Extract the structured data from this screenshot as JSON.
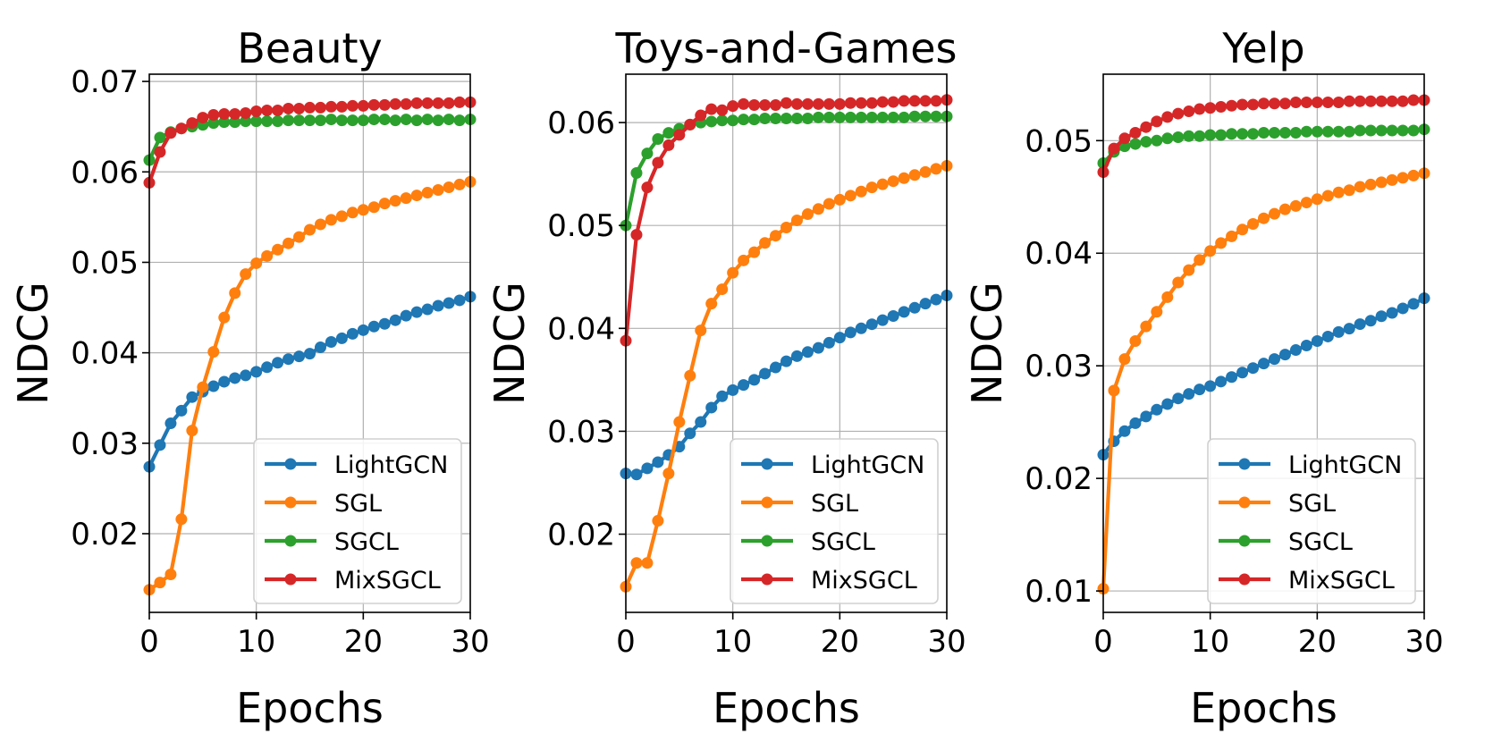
{
  "chart_data": [
    {
      "type": "line",
      "title": "Beauty",
      "xlabel": "Epochs",
      "ylabel": "NDCG",
      "xlim": [
        0,
        30
      ],
      "ylim": [
        0.0113,
        0.0708
      ],
      "xticks": [
        0,
        10,
        20,
        30
      ],
      "yticks": [
        0.02,
        0.03,
        0.04,
        0.05,
        0.06,
        0.07
      ],
      "xtick_labels": [
        "0",
        "10",
        "20",
        "30"
      ],
      "ytick_labels": [
        "0.02",
        "0.03",
        "0.04",
        "0.05",
        "0.06",
        "0.07"
      ],
      "grid": true,
      "legend_position": "bottom-right",
      "x": [
        0,
        1,
        2,
        3,
        4,
        5,
        6,
        7,
        8,
        9,
        10,
        11,
        12,
        13,
        14,
        15,
        16,
        17,
        18,
        19,
        20,
        21,
        22,
        23,
        24,
        25,
        26,
        27,
        28,
        29,
        30
      ],
      "series": [
        {
          "name": "LightGCN",
          "color": "#1f77b4",
          "values": [
            0.0274,
            0.0298,
            0.0322,
            0.0336,
            0.0351,
            0.0357,
            0.0363,
            0.0368,
            0.0372,
            0.0375,
            0.0379,
            0.0384,
            0.0389,
            0.0393,
            0.0396,
            0.0399,
            0.0406,
            0.0412,
            0.0416,
            0.0421,
            0.0425,
            0.0429,
            0.0432,
            0.0436,
            0.0441,
            0.0445,
            0.0448,
            0.0452,
            0.0455,
            0.0458,
            0.0462
          ]
        },
        {
          "name": "SGL",
          "color": "#ff7f0e",
          "values": [
            0.0138,
            0.0146,
            0.0155,
            0.0216,
            0.0314,
            0.0362,
            0.0401,
            0.0439,
            0.0466,
            0.0487,
            0.0499,
            0.0507,
            0.0514,
            0.0521,
            0.0528,
            0.0536,
            0.0542,
            0.0547,
            0.0551,
            0.0555,
            0.0558,
            0.0561,
            0.0565,
            0.0568,
            0.0571,
            0.0574,
            0.0577,
            0.058,
            0.0583,
            0.0586,
            0.0589
          ]
        },
        {
          "name": "SGCL",
          "color": "#2ca02c",
          "values": [
            0.0613,
            0.0638,
            0.0644,
            0.0648,
            0.065,
            0.0652,
            0.0654,
            0.0655,
            0.0655,
            0.0656,
            0.0656,
            0.0656,
            0.0656,
            0.0657,
            0.0657,
            0.0657,
            0.0657,
            0.0658,
            0.0657,
            0.0657,
            0.0657,
            0.0658,
            0.0658,
            0.0657,
            0.0658,
            0.0657,
            0.0658,
            0.0657,
            0.0658,
            0.0657,
            0.0658
          ]
        },
        {
          "name": "MixSGCL",
          "color": "#d62728",
          "values": [
            0.0588,
            0.0622,
            0.0643,
            0.0648,
            0.0654,
            0.066,
            0.0663,
            0.0664,
            0.0664,
            0.0665,
            0.0667,
            0.0668,
            0.0668,
            0.067,
            0.067,
            0.0671,
            0.0671,
            0.0672,
            0.0672,
            0.0673,
            0.0673,
            0.0674,
            0.0674,
            0.0675,
            0.0675,
            0.0676,
            0.0676,
            0.0676,
            0.0676,
            0.0677,
            0.0677
          ]
        }
      ]
    },
    {
      "type": "line",
      "title": "Toys-and-Games",
      "xlabel": "Epochs",
      "ylabel": "NDCG",
      "xlim": [
        0,
        30
      ],
      "ylim": [
        0.0124,
        0.0647
      ],
      "xticks": [
        0,
        10,
        20,
        30
      ],
      "yticks": [
        0.02,
        0.03,
        0.04,
        0.05,
        0.06
      ],
      "xtick_labels": [
        "0",
        "10",
        "20",
        "30"
      ],
      "ytick_labels": [
        "0.02",
        "0.03",
        "0.04",
        "0.05",
        "0.06"
      ],
      "grid": true,
      "legend_position": "bottom-right",
      "x": [
        0,
        1,
        2,
        3,
        4,
        5,
        6,
        7,
        8,
        9,
        10,
        11,
        12,
        13,
        14,
        15,
        16,
        17,
        18,
        19,
        20,
        21,
        22,
        23,
        24,
        25,
        26,
        27,
        28,
        29,
        30
      ],
      "series": [
        {
          "name": "LightGCN",
          "color": "#1f77b4",
          "values": [
            0.0259,
            0.0258,
            0.0264,
            0.027,
            0.0277,
            0.0285,
            0.0298,
            0.0309,
            0.0323,
            0.0334,
            0.034,
            0.0345,
            0.035,
            0.0356,
            0.0362,
            0.0368,
            0.0373,
            0.0377,
            0.0381,
            0.0386,
            0.0391,
            0.0396,
            0.04,
            0.0404,
            0.0408,
            0.0412,
            0.0416,
            0.042,
            0.0424,
            0.0428,
            0.0432
          ]
        },
        {
          "name": "SGL",
          "color": "#ff7f0e",
          "values": [
            0.0149,
            0.0172,
            0.0172,
            0.0213,
            0.0259,
            0.0309,
            0.0354,
            0.0398,
            0.0424,
            0.0438,
            0.0454,
            0.0466,
            0.0474,
            0.0483,
            0.049,
            0.0498,
            0.0505,
            0.0511,
            0.0516,
            0.0521,
            0.0525,
            0.0529,
            0.0533,
            0.0537,
            0.054,
            0.0543,
            0.0546,
            0.0549,
            0.0552,
            0.0555,
            0.0558
          ]
        },
        {
          "name": "SGCL",
          "color": "#2ca02c",
          "values": [
            0.05,
            0.0551,
            0.057,
            0.0584,
            0.059,
            0.0594,
            0.0598,
            0.06,
            0.0601,
            0.0602,
            0.0602,
            0.0603,
            0.0603,
            0.0604,
            0.0604,
            0.0604,
            0.0604,
            0.0604,
            0.0605,
            0.0605,
            0.0605,
            0.0605,
            0.0605,
            0.0605,
            0.0605,
            0.0605,
            0.0605,
            0.0606,
            0.0606,
            0.0606,
            0.0606
          ]
        },
        {
          "name": "MixSGCL",
          "color": "#d62728",
          "values": [
            0.0388,
            0.0491,
            0.0537,
            0.0561,
            0.0578,
            0.0588,
            0.0598,
            0.0607,
            0.0613,
            0.0612,
            0.0616,
            0.0618,
            0.0617,
            0.0617,
            0.0617,
            0.0619,
            0.0618,
            0.0618,
            0.0618,
            0.0618,
            0.0618,
            0.0619,
            0.0619,
            0.0619,
            0.062,
            0.062,
            0.0621,
            0.0621,
            0.0621,
            0.0621,
            0.0622
          ]
        }
      ]
    },
    {
      "type": "line",
      "title": "Yelp",
      "xlabel": "Epochs",
      "ylabel": "NDCG",
      "xlim": [
        0,
        30
      ],
      "ylim": [
        0.0081,
        0.0559
      ],
      "xticks": [
        0,
        10,
        20,
        30
      ],
      "yticks": [
        0.01,
        0.02,
        0.03,
        0.04,
        0.05
      ],
      "xtick_labels": [
        "0",
        "10",
        "20",
        "30"
      ],
      "ytick_labels": [
        "0.01",
        "0.02",
        "0.03",
        "0.04",
        "0.05"
      ],
      "grid": true,
      "legend_position": "bottom-right",
      "x": [
        0,
        1,
        2,
        3,
        4,
        5,
        6,
        7,
        8,
        9,
        10,
        11,
        12,
        13,
        14,
        15,
        16,
        17,
        18,
        19,
        20,
        21,
        22,
        23,
        24,
        25,
        26,
        27,
        28,
        29,
        30
      ],
      "series": [
        {
          "name": "LightGCN",
          "color": "#1f77b4",
          "values": [
            0.0221,
            0.0233,
            0.0242,
            0.0249,
            0.0255,
            0.0261,
            0.0266,
            0.0271,
            0.0275,
            0.0279,
            0.0282,
            0.0286,
            0.029,
            0.0294,
            0.0298,
            0.0302,
            0.0306,
            0.031,
            0.0314,
            0.0318,
            0.0322,
            0.0326,
            0.033,
            0.0333,
            0.0337,
            0.034,
            0.0344,
            0.0347,
            0.0351,
            0.0355,
            0.036
          ]
        },
        {
          "name": "SGL",
          "color": "#ff7f0e",
          "values": [
            0.0102,
            0.0278,
            0.0306,
            0.0322,
            0.0335,
            0.0348,
            0.0361,
            0.0374,
            0.0385,
            0.0394,
            0.0402,
            0.0409,
            0.0415,
            0.0421,
            0.0426,
            0.0431,
            0.0435,
            0.0439,
            0.0442,
            0.0445,
            0.0448,
            0.0451,
            0.0454,
            0.0456,
            0.0459,
            0.0461,
            0.0463,
            0.0465,
            0.0467,
            0.0469,
            0.0471
          ]
        },
        {
          "name": "SGCL",
          "color": "#2ca02c",
          "values": [
            0.048,
            0.049,
            0.0495,
            0.0497,
            0.0499,
            0.05,
            0.0502,
            0.0503,
            0.0504,
            0.0504,
            0.0505,
            0.0505,
            0.0506,
            0.0506,
            0.0506,
            0.0507,
            0.0507,
            0.0507,
            0.0507,
            0.0508,
            0.0508,
            0.0508,
            0.0508,
            0.0508,
            0.0509,
            0.0509,
            0.0509,
            0.0509,
            0.0509,
            0.0509,
            0.051
          ]
        },
        {
          "name": "MixSGCL",
          "color": "#d62728",
          "values": [
            0.0472,
            0.0493,
            0.0502,
            0.0507,
            0.0512,
            0.0517,
            0.0521,
            0.0524,
            0.0526,
            0.0528,
            0.0529,
            0.053,
            0.0531,
            0.0532,
            0.0532,
            0.0533,
            0.0533,
            0.0533,
            0.0534,
            0.0534,
            0.0534,
            0.0534,
            0.0534,
            0.0535,
            0.0535,
            0.0535,
            0.0535,
            0.0535,
            0.0535,
            0.0536,
            0.0536
          ]
        }
      ]
    }
  ]
}
